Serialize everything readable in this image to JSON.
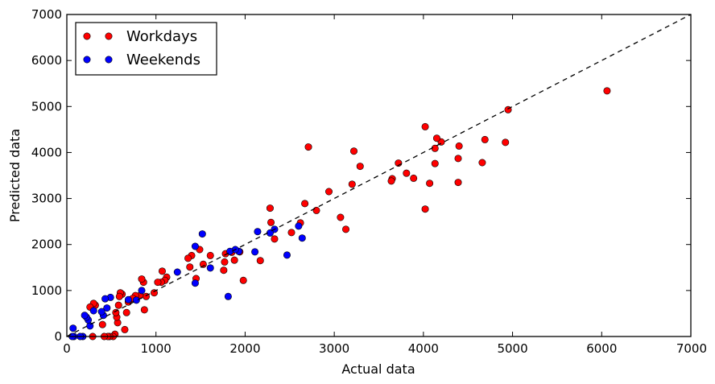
{
  "chart_data": {
    "type": "scatter",
    "title": "",
    "xlabel": "Actual data",
    "ylabel": "Predicted data",
    "xlim": [
      0,
      7000
    ],
    "ylim": [
      0,
      7000
    ],
    "x_ticks": [
      0,
      1000,
      2000,
      3000,
      4000,
      5000,
      6000,
      7000
    ],
    "y_ticks": [
      0,
      1000,
      2000,
      3000,
      4000,
      5000,
      6000,
      7000
    ],
    "grid": false,
    "legend_position": "top-left",
    "reference_line": {
      "style": "dashed",
      "color": "#000000",
      "from": [
        0,
        0
      ],
      "to": [
        7000,
        7000
      ]
    },
    "series": [
      {
        "name": "Workdays",
        "color": "#ff0000",
        "points": [
          [
            6060,
            5340
          ],
          [
            4950,
            4930
          ],
          [
            4920,
            4220
          ],
          [
            4690,
            4280
          ],
          [
            4660,
            3780
          ],
          [
            4400,
            4140
          ],
          [
            4390,
            3870
          ],
          [
            4390,
            3350
          ],
          [
            4200,
            4230
          ],
          [
            4150,
            4310
          ],
          [
            4130,
            4090
          ],
          [
            4130,
            3760
          ],
          [
            4070,
            3330
          ],
          [
            4020,
            4560
          ],
          [
            4020,
            2770
          ],
          [
            3890,
            3440
          ],
          [
            3810,
            3550
          ],
          [
            3720,
            3770
          ],
          [
            3650,
            3430
          ],
          [
            3640,
            3380
          ],
          [
            3290,
            3700
          ],
          [
            3220,
            4030
          ],
          [
            3200,
            3310
          ],
          [
            3130,
            2330
          ],
          [
            3070,
            2590
          ],
          [
            2940,
            3150
          ],
          [
            2800,
            2740
          ],
          [
            2710,
            4120
          ],
          [
            2670,
            2890
          ],
          [
            2620,
            2470
          ],
          [
            2520,
            2260
          ],
          [
            2330,
            2120
          ],
          [
            2290,
            2480
          ],
          [
            2280,
            2790
          ],
          [
            2170,
            1650
          ],
          [
            1980,
            1220
          ],
          [
            1940,
            1840
          ],
          [
            1880,
            1660
          ],
          [
            1850,
            1830
          ],
          [
            1780,
            1800
          ],
          [
            1770,
            1620
          ],
          [
            1760,
            1440
          ],
          [
            1610,
            1760
          ],
          [
            1530,
            1570
          ],
          [
            1490,
            1890
          ],
          [
            1450,
            1260
          ],
          [
            1400,
            1760
          ],
          [
            1380,
            1510
          ],
          [
            1360,
            1700
          ],
          [
            1120,
            1290
          ],
          [
            1100,
            1220
          ],
          [
            1070,
            1420
          ],
          [
            1060,
            1180
          ],
          [
            1020,
            1180
          ],
          [
            980,
            950
          ],
          [
            890,
            870
          ],
          [
            870,
            580
          ],
          [
            860,
            1180
          ],
          [
            840,
            1250
          ],
          [
            820,
            890
          ],
          [
            770,
            890
          ],
          [
            740,
            830
          ],
          [
            690,
            750
          ],
          [
            670,
            520
          ],
          [
            650,
            150
          ],
          [
            620,
            920
          ],
          [
            600,
            950
          ],
          [
            590,
            870
          ],
          [
            580,
            680
          ],
          [
            570,
            300
          ],
          [
            560,
            420
          ],
          [
            550,
            520
          ],
          [
            540,
            50
          ],
          [
            520,
            0
          ],
          [
            480,
            0
          ],
          [
            460,
            0
          ],
          [
            420,
            0
          ],
          [
            400,
            260
          ],
          [
            320,
            680
          ],
          [
            300,
            720
          ],
          [
            290,
            0
          ],
          [
            260,
            640
          ]
        ]
      },
      {
        "name": "Weekends",
        "color": "#0000ff",
        "points": [
          [
            2640,
            2140
          ],
          [
            2600,
            2400
          ],
          [
            2470,
            1770
          ],
          [
            2330,
            2330
          ],
          [
            2280,
            2250
          ],
          [
            2140,
            2280
          ],
          [
            2110,
            1840
          ],
          [
            1930,
            1850
          ],
          [
            1890,
            1890
          ],
          [
            1830,
            1850
          ],
          [
            1810,
            870
          ],
          [
            1610,
            1490
          ],
          [
            1520,
            2230
          ],
          [
            1440,
            1960
          ],
          [
            1440,
            1160
          ],
          [
            1240,
            1400
          ],
          [
            840,
            1000
          ],
          [
            780,
            790
          ],
          [
            690,
            800
          ],
          [
            490,
            850
          ],
          [
            450,
            620
          ],
          [
            430,
            820
          ],
          [
            410,
            460
          ],
          [
            390,
            540
          ],
          [
            300,
            560
          ],
          [
            260,
            230
          ],
          [
            240,
            360
          ],
          [
            220,
            420
          ],
          [
            200,
            460
          ],
          [
            180,
            0
          ],
          [
            150,
            0
          ],
          [
            80,
            0
          ],
          [
            70,
            180
          ],
          [
            60,
            0
          ]
        ]
      }
    ]
  }
}
